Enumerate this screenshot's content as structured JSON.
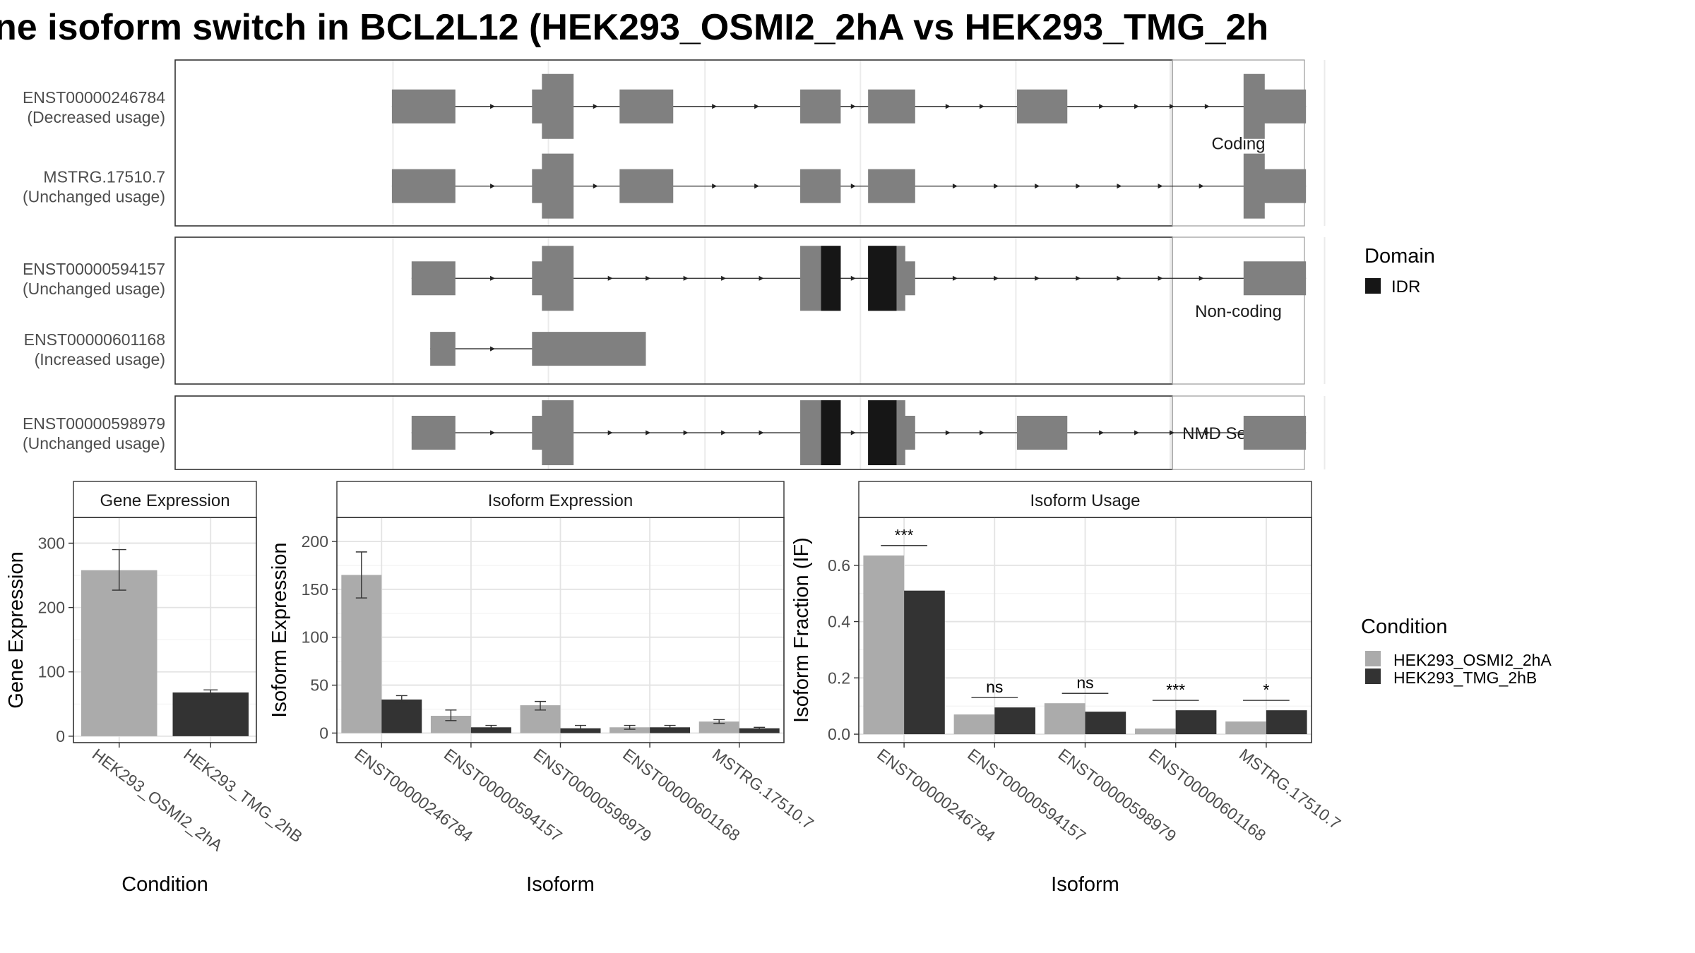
{
  "title": "ne isoform switch in BCL2L12 (HEK293_OSMI2_2hA vs HEK293_TMG_2h",
  "structure": {
    "panels": [
      {
        "label": "Coding",
        "isoforms": [
          {
            "name": "ENST00000246784",
            "usage": "(Decreased usage)",
            "exons": [
              [
                198,
                256
              ],
              [
                326,
                364,
                "c"
              ],
              [
                406,
                455
              ],
              [
                571,
                608
              ],
              [
                633,
                676
              ],
              [
                769,
                815
              ],
              [
                976,
                1033,
                "r"
              ]
            ],
            "domains": []
          },
          {
            "name": "MSTRG.17510.7",
            "usage": "(Unchanged usage)",
            "exons": [
              [
                198,
                256
              ],
              [
                326,
                364,
                "c"
              ],
              [
                406,
                455
              ],
              [
                571,
                608
              ],
              [
                633,
                676
              ],
              [
                976,
                1033,
                "r"
              ]
            ],
            "domains": []
          }
        ]
      },
      {
        "label": "Non-coding",
        "isoforms": [
          {
            "name": "ENST00000594157",
            "usage": "(Unchanged usage)",
            "exons": [
              [
                216,
                256
              ],
              [
                326,
                364,
                "c"
              ],
              [
                571,
                608,
                "cl"
              ],
              [
                633,
                676,
                "cr"
              ],
              [
                976,
                1033
              ]
            ],
            "domains": [
              [
                590,
                608
              ],
              [
                633,
                659
              ]
            ]
          },
          {
            "name": "ENST00000601168",
            "usage": "(Increased usage)",
            "exons": [
              [
                233,
                256
              ],
              [
                326,
                430
              ]
            ],
            "domains": []
          }
        ]
      },
      {
        "label": "NMD Sensitive",
        "isoforms": [
          {
            "name": "ENST00000598979",
            "usage": "(Unchanged usage)",
            "exons": [
              [
                216,
                256
              ],
              [
                326,
                364,
                "c"
              ],
              [
                571,
                608,
                "cl"
              ],
              [
                633,
                676,
                "cr"
              ],
              [
                769,
                815
              ],
              [
                976,
                1033
              ]
            ],
            "domains": [
              [
                590,
                608
              ],
              [
                633,
                659
              ]
            ]
          }
        ]
      }
    ],
    "gridlines": [
      199,
      341,
      484,
      626,
      768,
      909,
      1050
    ],
    "domain_legend": {
      "title": "Domain",
      "items": [
        {
          "label": "IDR",
          "color": "#161616"
        }
      ]
    }
  },
  "chart_data": [
    {
      "type": "bar",
      "title": "Gene Expression",
      "xlabel": "Condition",
      "ylabel": "Gene Expression",
      "categories": [
        "HEK293_OSMI2_2hA",
        "HEK293_TMG_2hB"
      ],
      "values": [
        258,
        68
      ],
      "errors": [
        [
          227,
          290
        ],
        [
          63,
          72
        ]
      ],
      "colors": [
        "#ababab",
        "#333333"
      ],
      "ylim": [
        -10,
        340
      ],
      "yticks": [
        0,
        100,
        200,
        300
      ],
      "grid": true
    },
    {
      "type": "bar",
      "title": "Isoform Expression",
      "xlabel": "Isoform",
      "ylabel": "Isoform Expression",
      "categories": [
        "ENST00000246784",
        "ENST00000594157",
        "ENST00000598979",
        "ENST00000601168",
        "MSTRG.17510.7"
      ],
      "series": [
        {
          "name": "HEK293_OSMI2_2hA",
          "values": [
            165,
            18,
            29,
            6,
            12
          ],
          "errors": [
            [
              141,
              189
            ],
            [
              13,
              24
            ],
            [
              24,
              33
            ],
            [
              4,
              8
            ],
            [
              10,
              14
            ]
          ]
        },
        {
          "name": "HEK293_TMG_2hB",
          "values": [
            35,
            6,
            5,
            6,
            5
          ],
          "errors": [
            [
              31,
              39
            ],
            [
              4,
              8
            ],
            [
              3,
              8
            ],
            [
              3,
              8
            ],
            [
              4,
              6
            ]
          ]
        }
      ],
      "ylim": [
        -10,
        225
      ],
      "yticks": [
        0,
        50,
        100,
        150,
        200
      ],
      "grid": true
    },
    {
      "type": "bar",
      "title": "Isoform Usage",
      "xlabel": "Isoform",
      "ylabel": "Isoform Fraction (IF)",
      "categories": [
        "ENST00000246784",
        "ENST00000594157",
        "ENST00000598979",
        "ENST00000601168",
        "MSTRG.17510.7"
      ],
      "series": [
        {
          "name": "HEK293_OSMI2_2hA",
          "values": [
            0.635,
            0.07,
            0.11,
            0.02,
            0.045
          ]
        },
        {
          "name": "HEK293_TMG_2hB",
          "values": [
            0.51,
            0.095,
            0.08,
            0.085,
            0.085
          ]
        }
      ],
      "significance": [
        "***",
        "ns",
        "ns",
        "***",
        "*"
      ],
      "ylim": [
        -0.03,
        0.77
      ],
      "yticks": [
        0.0,
        0.2,
        0.4,
        0.6
      ],
      "grid": true
    }
  ],
  "condition_legend": {
    "title": "Condition",
    "items": [
      {
        "label": "HEK293_OSMI2_2hA",
        "color": "#ababab"
      },
      {
        "label": "HEK293_TMG_2hB",
        "color": "#333333"
      }
    ]
  }
}
